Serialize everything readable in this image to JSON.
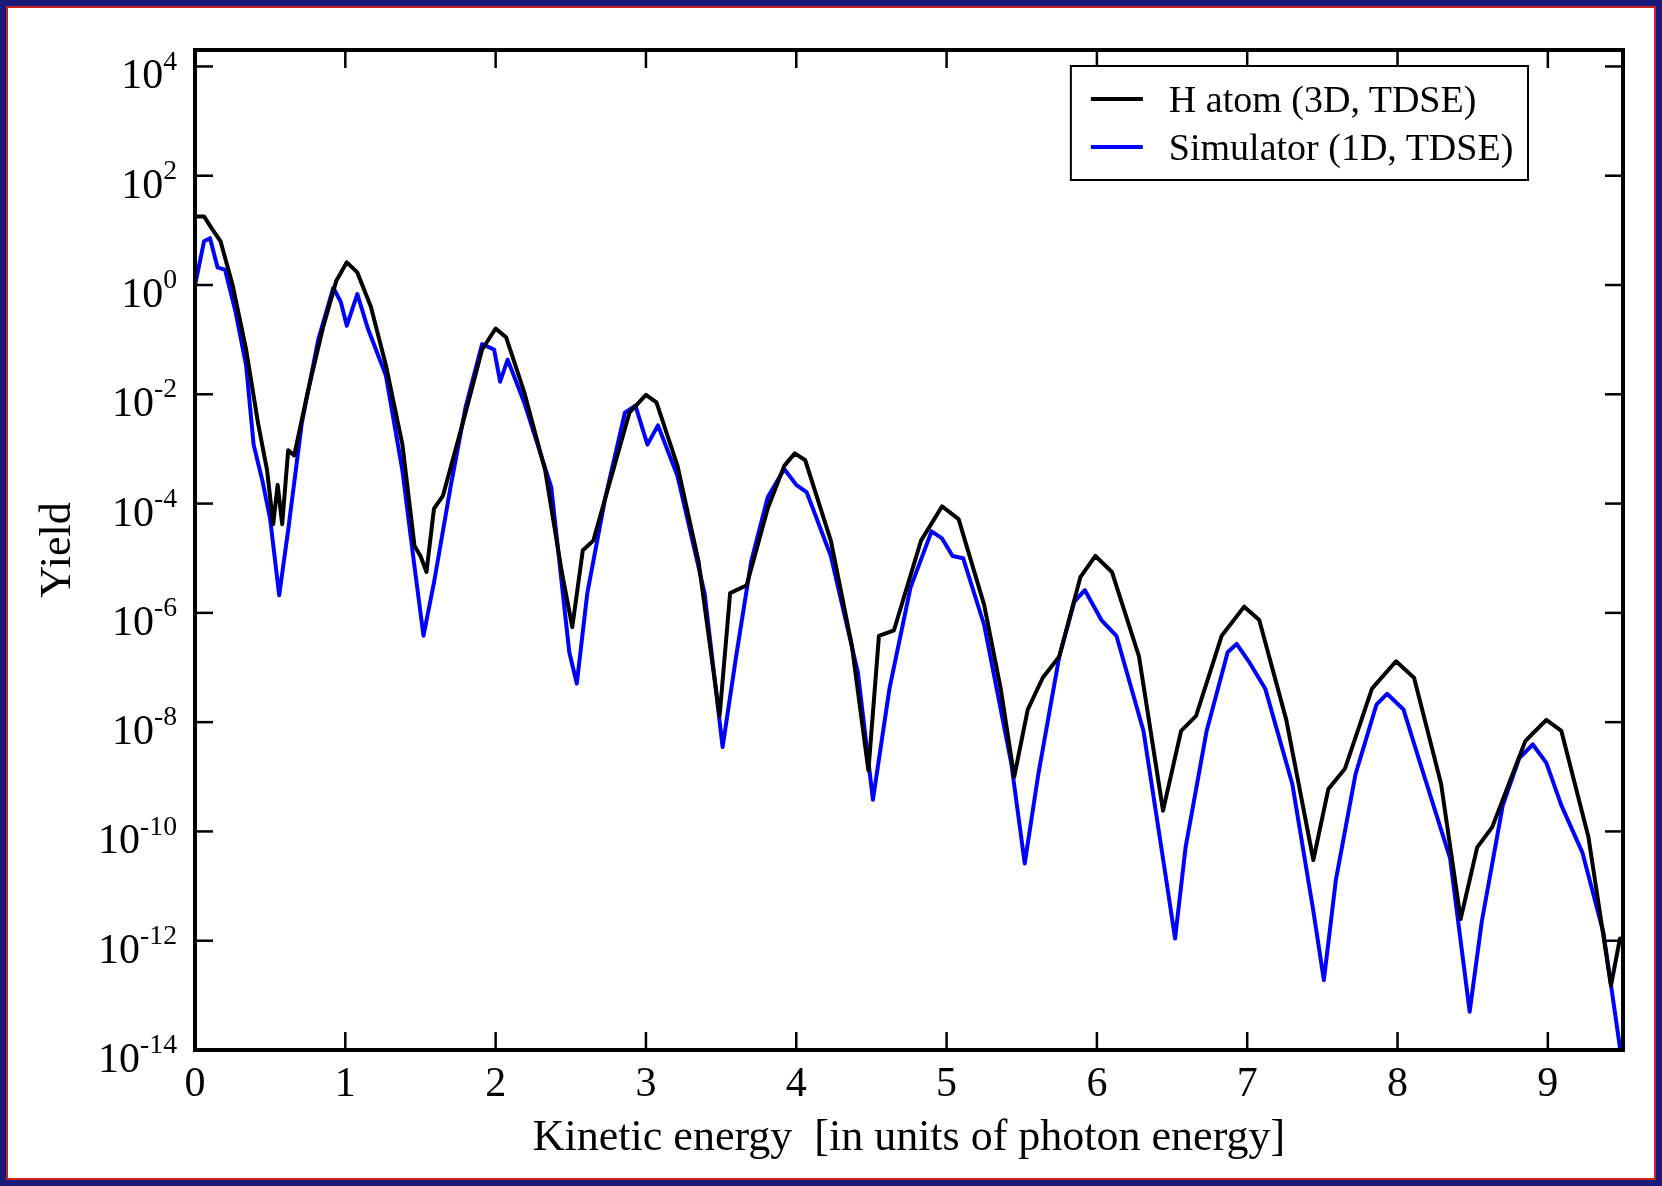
{
  "chart_data": {
    "type": "line",
    "xlabel": "Kinetic energy  [in units of photon energy]",
    "ylabel": "Yield",
    "log": "y",
    "legend": "top right",
    "line_style": "solid",
    "marker": "none",
    "xlim": [
      0,
      9.5
    ],
    "ylim": [
      1e-14,
      20000.0
    ],
    "xticks": [
      0,
      1,
      2,
      3,
      4,
      5,
      6,
      7,
      8,
      9
    ],
    "yticks": [
      {
        "value": 1e-14,
        "label": "10$^{-14}$"
      },
      {
        "value": 1e-12,
        "label": "10$^{-12}$"
      },
      {
        "value": 1e-10,
        "label": "10$^{-10}$"
      },
      {
        "value": 1e-08,
        "label": "10$^{-8}$"
      },
      {
        "value": 1e-06,
        "label": "10$^{-6}$"
      },
      {
        "value": 0.0001,
        "label": "10$^{-4}$"
      },
      {
        "value": 0.01,
        "label": "10$^{-2}$"
      },
      {
        "value": 1,
        "label": "10$^{0}$"
      },
      {
        "value": 100,
        "label": "10$^{2}$"
      },
      {
        "value": 10000,
        "label": "10$^{4}$"
      }
    ],
    "series": [
      {
        "name": "H atom (3D, TDSE)",
        "color": "#000000",
        "x": [
          0,
          0.06,
          0.11,
          0.17,
          0.25,
          0.34,
          0.42,
          0.48,
          0.52,
          0.55,
          0.58,
          0.62,
          0.66,
          0.75,
          0.85,
          0.94,
          1.01,
          1.08,
          1.17,
          1.27,
          1.38,
          1.46,
          1.5,
          1.54,
          1.59,
          1.65,
          1.8,
          1.91,
          2.0,
          2.07,
          2.19,
          2.33,
          2.44,
          2.51,
          2.58,
          2.65,
          2.79,
          2.89,
          3.0,
          3.07,
          3.21,
          3.35,
          3.49,
          3.56,
          3.67,
          3.81,
          3.92,
          3.99,
          4.06,
          4.23,
          4.37,
          4.48,
          4.55,
          4.65,
          4.83,
          4.97,
          5.08,
          5.25,
          5.36,
          5.45,
          5.54,
          5.64,
          5.75,
          5.89,
          5.99,
          6.1,
          6.28,
          6.44,
          6.56,
          6.66,
          6.83,
          6.98,
          7.08,
          7.26,
          7.44,
          7.54,
          7.65,
          7.83,
          7.99,
          8.11,
          8.29,
          8.42,
          8.53,
          8.63,
          8.85,
          8.99,
          9.09,
          9.27,
          9.42,
          9.48
        ],
        "values": [
          18,
          18,
          11,
          6.3,
          1.0,
          0.066,
          0.0029,
          0.0004,
          4.2e-05,
          0.00022,
          4.2e-05,
          0.00095,
          0.00076,
          0.011,
          0.16,
          1.2,
          2.6,
          1.7,
          0.4,
          0.034,
          0.0012,
          1.7e-05,
          1.1e-05,
          5.6e-06,
          8.1e-05,
          0.00014,
          0.0046,
          0.066,
          0.16,
          0.11,
          0.011,
          0.0004,
          5.6e-06,
          5.5e-07,
          1.4e-05,
          2.1e-05,
          0.00049,
          0.0046,
          0.0098,
          0.0071,
          0.00049,
          8.7e-06,
          1.3e-08,
          2.3e-06,
          3.2e-06,
          8.1e-05,
          0.00049,
          0.00083,
          0.00062,
          2.1e-05,
          2.5e-07,
          1.3e-09,
          3.8e-07,
          4.8e-07,
          2.1e-05,
          8.9e-05,
          5.2e-05,
          1.4e-06,
          4.1e-08,
          1e-09,
          1.7e-08,
          6.5e-08,
          1.6e-07,
          4.5e-06,
          1.1e-05,
          5.6e-06,
          1.6e-07,
          2.4e-10,
          6.9e-09,
          1.3e-08,
          3.8e-07,
          1.3e-06,
          7.4e-07,
          1.1e-08,
          3e-11,
          6e-10,
          1.4e-09,
          4.1e-08,
          1.3e-07,
          6.5e-08,
          7.4e-10,
          2.5e-12,
          5.1e-11,
          1.2e-10,
          4.5e-09,
          1.1e-08,
          6.9e-09,
          7.9e-11,
          1.5e-13,
          1.1e-12
        ]
      },
      {
        "name": "Simulator (1D, TDSE)",
        "color": "#0000ff",
        "x": [
          0,
          0.06,
          0.1,
          0.15,
          0.2,
          0.27,
          0.34,
          0.39,
          0.45,
          0.5,
          0.56,
          0.62,
          0.71,
          0.82,
          0.92,
          0.97,
          1.01,
          1.08,
          1.15,
          1.27,
          1.38,
          1.46,
          1.52,
          1.59,
          1.7,
          1.8,
          1.91,
          1.99,
          2.03,
          2.08,
          2.19,
          2.37,
          2.49,
          2.54,
          2.61,
          2.73,
          2.86,
          2.93,
          3.01,
          3.08,
          3.21,
          3.39,
          3.51,
          3.6,
          3.7,
          3.81,
          3.92,
          4.0,
          4.07,
          4.23,
          4.41,
          4.51,
          4.62,
          4.76,
          4.9,
          4.97,
          5.04,
          5.11,
          5.25,
          5.43,
          5.52,
          5.61,
          5.75,
          5.85,
          5.92,
          6.03,
          6.13,
          6.31,
          6.45,
          6.52,
          6.59,
          6.73,
          6.87,
          6.93,
          7.01,
          7.12,
          7.3,
          7.44,
          7.51,
          7.59,
          7.72,
          7.86,
          7.93,
          8.04,
          8.14,
          8.35,
          8.48,
          8.56,
          8.7,
          8.81,
          8.9,
          8.99,
          9.09,
          9.23,
          9.37,
          9.48
        ],
        "values": [
          0.98,
          6.3,
          7.2,
          2.1,
          1.9,
          0.32,
          0.034,
          0.0012,
          0.00025,
          5.2e-05,
          2.1e-06,
          3.3e-05,
          0.0029,
          0.1,
          0.89,
          0.49,
          0.18,
          0.68,
          0.16,
          0.022,
          0.0004,
          7.1e-06,
          3.8e-07,
          3.6e-06,
          0.0002,
          0.0058,
          0.083,
          0.066,
          0.017,
          0.043,
          0.0071,
          0.0002,
          1.9e-07,
          5.1e-08,
          2.3e-06,
          0.00013,
          0.0046,
          0.0062,
          0.0012,
          0.0027,
          0.00032,
          2.3e-06,
          3.5e-09,
          1.6e-07,
          8.7e-06,
          0.00013,
          0.00043,
          0.00022,
          0.00016,
          1.1e-05,
          8.1e-08,
          3.8e-10,
          4.1e-08,
          2.9e-06,
          3.1e-05,
          2.3e-05,
          1.1e-05,
          1e-05,
          6e-07,
          1.8e-09,
          2.6e-11,
          1.1e-09,
          1.6e-07,
          1.6e-06,
          2.6e-06,
          7.4e-07,
          3.8e-07,
          6.9e-09,
          2.1e-11,
          1.1e-12,
          5.1e-11,
          6.9e-09,
          1.9e-07,
          2.7e-07,
          1.3e-07,
          4.1e-08,
          7.4e-10,
          3.5e-12,
          1.9e-13,
          1.3e-11,
          1.1e-09,
          2.1e-08,
          3.3e-08,
          1.7e-08,
          2.2e-09,
          3.2e-11,
          5e-14,
          2.2e-12,
          3e-10,
          2.2e-09,
          3.9e-09,
          1.8e-09,
          3e-10,
          4.1e-11,
          1.4e-12,
          1.1e-14
        ]
      }
    ]
  }
}
